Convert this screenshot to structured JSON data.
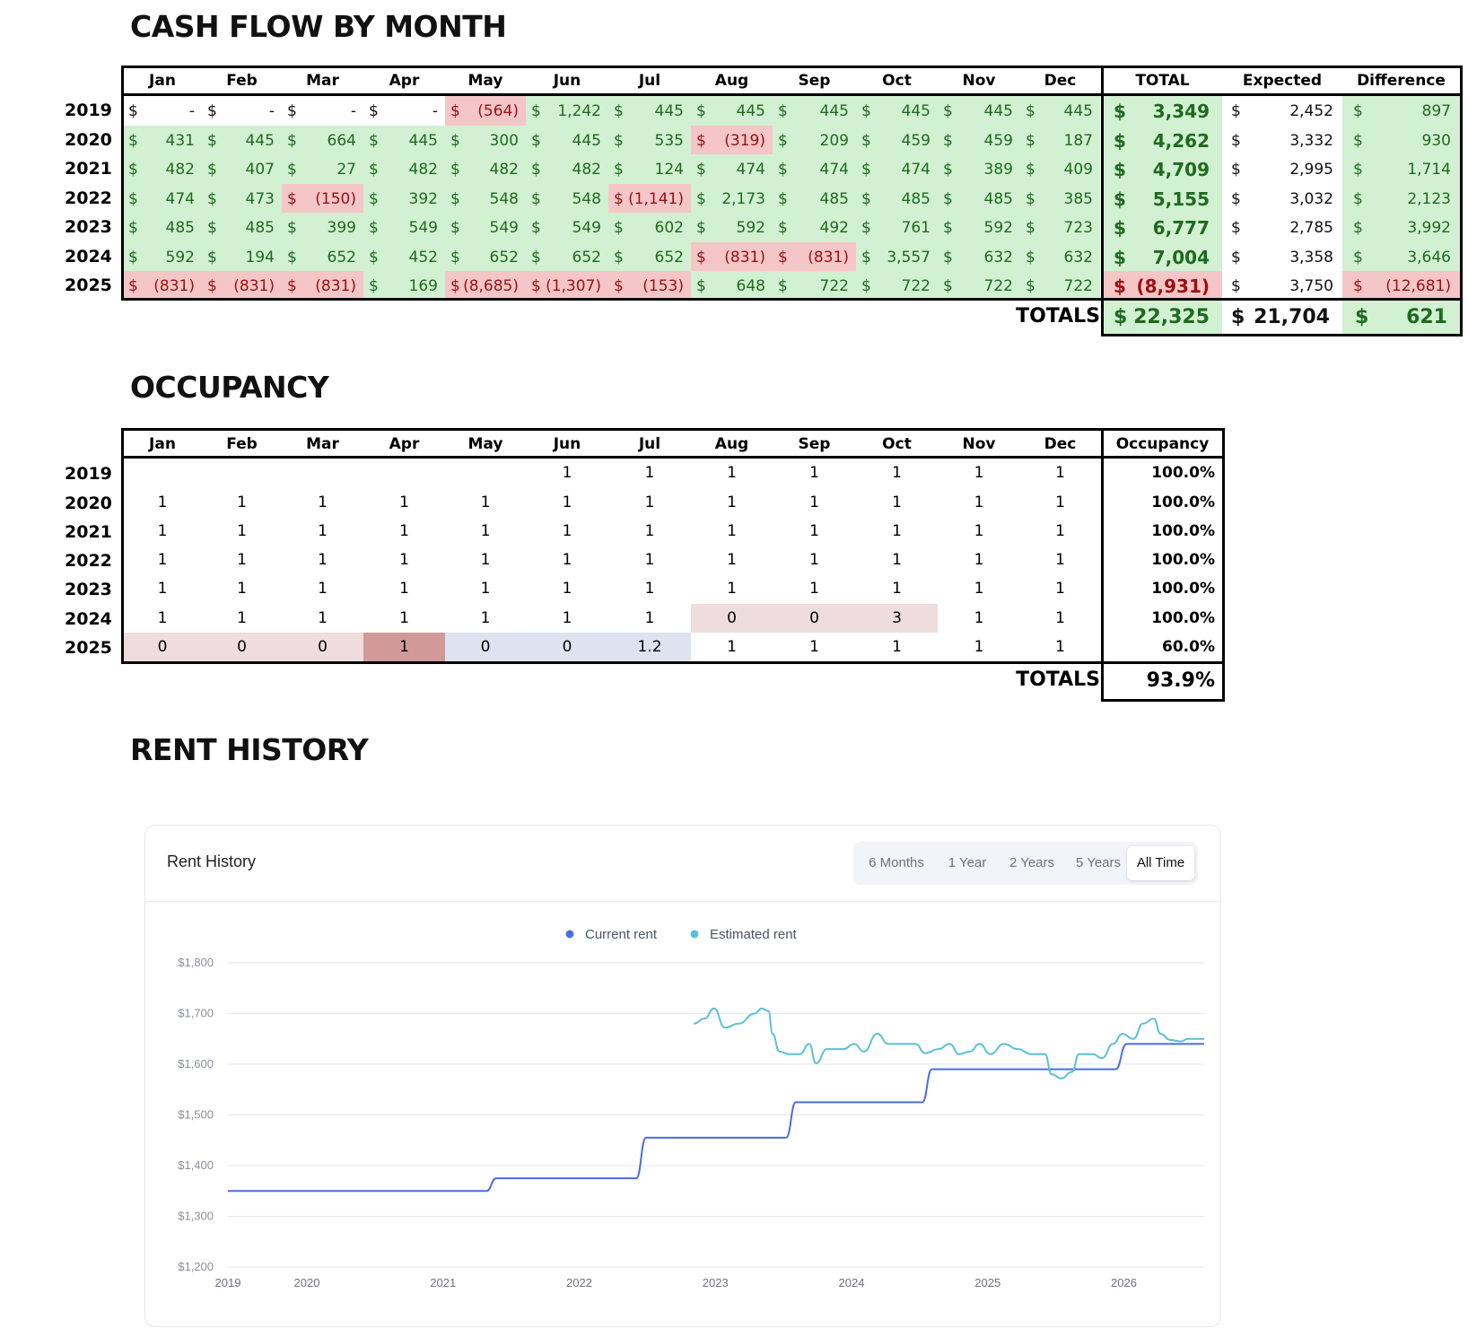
{
  "cashflow": {
    "title": "CASH FLOW BY MONTH",
    "months": [
      "Jan",
      "Feb",
      "Mar",
      "Apr",
      "May",
      "Jun",
      "Jul",
      "Aug",
      "Sep",
      "Oct",
      "Nov",
      "Dec"
    ],
    "headers": {
      "total": "TOTAL",
      "expected": "Expected",
      "difference": "Difference"
    },
    "currency": "$",
    "rows": [
      {
        "year": "2019",
        "cells": [
          [
            "-",
            "n"
          ],
          [
            "-",
            "n"
          ],
          [
            "-",
            "n"
          ],
          [
            "-",
            "n"
          ],
          [
            "(564)",
            "r"
          ],
          [
            "1,242",
            "g"
          ],
          [
            "445",
            "g"
          ],
          [
            "445",
            "g"
          ],
          [
            "445",
            "g"
          ],
          [
            "445",
            "g"
          ],
          [
            "445",
            "g"
          ],
          [
            "445",
            "g"
          ]
        ],
        "total": "3,349",
        "total_status": "g",
        "expected": "2,452",
        "difference": "897",
        "difference_status": "g"
      },
      {
        "year": "2020",
        "cells": [
          [
            "431",
            "g"
          ],
          [
            "445",
            "g"
          ],
          [
            "664",
            "g"
          ],
          [
            "445",
            "g"
          ],
          [
            "300",
            "g"
          ],
          [
            "445",
            "g"
          ],
          [
            "535",
            "g"
          ],
          [
            "(319)",
            "r"
          ],
          [
            "209",
            "g"
          ],
          [
            "459",
            "g"
          ],
          [
            "459",
            "g"
          ],
          [
            "187",
            "g"
          ]
        ],
        "total": "4,262",
        "total_status": "g",
        "expected": "3,332",
        "difference": "930",
        "difference_status": "g"
      },
      {
        "year": "2021",
        "cells": [
          [
            "482",
            "g"
          ],
          [
            "407",
            "g"
          ],
          [
            "27",
            "g"
          ],
          [
            "482",
            "g"
          ],
          [
            "482",
            "g"
          ],
          [
            "482",
            "g"
          ],
          [
            "124",
            "g"
          ],
          [
            "474",
            "g"
          ],
          [
            "474",
            "g"
          ],
          [
            "474",
            "g"
          ],
          [
            "389",
            "g"
          ],
          [
            "409",
            "g"
          ]
        ],
        "total": "4,709",
        "total_status": "g",
        "expected": "2,995",
        "difference": "1,714",
        "difference_status": "g"
      },
      {
        "year": "2022",
        "cells": [
          [
            "474",
            "g"
          ],
          [
            "473",
            "g"
          ],
          [
            "(150)",
            "r"
          ],
          [
            "392",
            "g"
          ],
          [
            "548",
            "g"
          ],
          [
            "548",
            "g"
          ],
          [
            "(1,141)",
            "r"
          ],
          [
            "2,173",
            "g"
          ],
          [
            "485",
            "g"
          ],
          [
            "485",
            "g"
          ],
          [
            "485",
            "g"
          ],
          [
            "385",
            "g"
          ]
        ],
        "total": "5,155",
        "total_status": "g",
        "expected": "3,032",
        "difference": "2,123",
        "difference_status": "g"
      },
      {
        "year": "2023",
        "cells": [
          [
            "485",
            "g"
          ],
          [
            "485",
            "g"
          ],
          [
            "399",
            "g"
          ],
          [
            "549",
            "g"
          ],
          [
            "549",
            "g"
          ],
          [
            "549",
            "g"
          ],
          [
            "602",
            "g"
          ],
          [
            "592",
            "g"
          ],
          [
            "492",
            "g"
          ],
          [
            "761",
            "g"
          ],
          [
            "592",
            "g"
          ],
          [
            "723",
            "g"
          ]
        ],
        "total": "6,777",
        "total_status": "g",
        "expected": "2,785",
        "difference": "3,992",
        "difference_status": "g"
      },
      {
        "year": "2024",
        "cells": [
          [
            "592",
            "g"
          ],
          [
            "194",
            "g"
          ],
          [
            "652",
            "g"
          ],
          [
            "452",
            "g"
          ],
          [
            "652",
            "g"
          ],
          [
            "652",
            "g"
          ],
          [
            "652",
            "g"
          ],
          [
            "(831)",
            "r"
          ],
          [
            "(831)",
            "r"
          ],
          [
            "3,557",
            "g"
          ],
          [
            "632",
            "g"
          ],
          [
            "632",
            "g"
          ]
        ],
        "total": "7,004",
        "total_status": "g",
        "expected": "3,358",
        "difference": "3,646",
        "difference_status": "g"
      },
      {
        "year": "2025",
        "cells": [
          [
            "(831)",
            "r"
          ],
          [
            "(831)",
            "r"
          ],
          [
            "(831)",
            "r"
          ],
          [
            "169",
            "g"
          ],
          [
            "(8,685)",
            "r"
          ],
          [
            "(1,307)",
            "r"
          ],
          [
            "(153)",
            "r"
          ],
          [
            "648",
            "g"
          ],
          [
            "722",
            "g"
          ],
          [
            "722",
            "g"
          ],
          [
            "722",
            "g"
          ],
          [
            "722",
            "g"
          ]
        ],
        "total": "(8,931)",
        "total_status": "r",
        "expected": "3,750",
        "difference": "(12,681)",
        "difference_status": "r"
      }
    ],
    "totals_label": "TOTALS",
    "totals": {
      "total": "22,325",
      "expected": "21,704",
      "difference": "621"
    }
  },
  "occupancy": {
    "title": "OCCUPANCY",
    "months": [
      "Jan",
      "Feb",
      "Mar",
      "Apr",
      "May",
      "Jun",
      "Jul",
      "Aug",
      "Sep",
      "Oct",
      "Nov",
      "Dec"
    ],
    "header": "Occupancy",
    "rows": [
      {
        "year": "2019",
        "cells": [
          [
            "",
            ""
          ],
          [
            "",
            ""
          ],
          [
            "",
            ""
          ],
          [
            "",
            ""
          ],
          [
            "",
            ""
          ],
          [
            "1",
            ""
          ],
          [
            "1",
            ""
          ],
          [
            "1",
            ""
          ],
          [
            "1",
            ""
          ],
          [
            "1",
            ""
          ],
          [
            "1",
            ""
          ],
          [
            "1",
            ""
          ]
        ],
        "pct": "100.0%"
      },
      {
        "year": "2020",
        "cells": [
          [
            "1",
            ""
          ],
          [
            "1",
            ""
          ],
          [
            "1",
            ""
          ],
          [
            "1",
            ""
          ],
          [
            "1",
            ""
          ],
          [
            "1",
            ""
          ],
          [
            "1",
            ""
          ],
          [
            "1",
            ""
          ],
          [
            "1",
            ""
          ],
          [
            "1",
            ""
          ],
          [
            "1",
            ""
          ],
          [
            "1",
            ""
          ]
        ],
        "pct": "100.0%"
      },
      {
        "year": "2021",
        "cells": [
          [
            "1",
            ""
          ],
          [
            "1",
            ""
          ],
          [
            "1",
            ""
          ],
          [
            "1",
            ""
          ],
          [
            "1",
            ""
          ],
          [
            "1",
            ""
          ],
          [
            "1",
            ""
          ],
          [
            "1",
            ""
          ],
          [
            "1",
            ""
          ],
          [
            "1",
            ""
          ],
          [
            "1",
            ""
          ],
          [
            "1",
            ""
          ]
        ],
        "pct": "100.0%"
      },
      {
        "year": "2022",
        "cells": [
          [
            "1",
            ""
          ],
          [
            "1",
            ""
          ],
          [
            "1",
            ""
          ],
          [
            "1",
            ""
          ],
          [
            "1",
            ""
          ],
          [
            "1",
            ""
          ],
          [
            "1",
            ""
          ],
          [
            "1",
            ""
          ],
          [
            "1",
            ""
          ],
          [
            "1",
            ""
          ],
          [
            "1",
            ""
          ],
          [
            "1",
            ""
          ]
        ],
        "pct": "100.0%"
      },
      {
        "year": "2023",
        "cells": [
          [
            "1",
            ""
          ],
          [
            "1",
            ""
          ],
          [
            "1",
            ""
          ],
          [
            "1",
            ""
          ],
          [
            "1",
            ""
          ],
          [
            "1",
            ""
          ],
          [
            "1",
            ""
          ],
          [
            "1",
            ""
          ],
          [
            "1",
            ""
          ],
          [
            "1",
            ""
          ],
          [
            "1",
            ""
          ],
          [
            "1",
            ""
          ]
        ],
        "pct": "100.0%"
      },
      {
        "year": "2024",
        "cells": [
          [
            "1",
            ""
          ],
          [
            "1",
            ""
          ],
          [
            "1",
            ""
          ],
          [
            "1",
            ""
          ],
          [
            "1",
            ""
          ],
          [
            "1",
            ""
          ],
          [
            "1",
            ""
          ],
          [
            "0",
            "pink"
          ],
          [
            "0",
            "pink"
          ],
          [
            "3",
            "pink"
          ],
          [
            "1",
            ""
          ],
          [
            "1",
            ""
          ]
        ],
        "pct": "100.0%"
      },
      {
        "year": "2025",
        "cells": [
          [
            "0",
            "pink"
          ],
          [
            "0",
            "pink"
          ],
          [
            "0",
            "pink"
          ],
          [
            "1",
            "dark"
          ],
          [
            "0",
            "blue"
          ],
          [
            "0",
            "blue"
          ],
          [
            "1.2",
            "blue"
          ],
          [
            "1",
            ""
          ],
          [
            "1",
            ""
          ],
          [
            "1",
            ""
          ],
          [
            "1",
            ""
          ],
          [
            "1",
            ""
          ]
        ],
        "pct": "60.0%"
      }
    ],
    "totals_label": "TOTALS",
    "total_pct": "93.9%"
  },
  "rent_history": {
    "section_title": "RENT HISTORY",
    "card_title": "Rent History",
    "ranges": [
      "6 Months",
      "1 Year",
      "2 Years",
      "5 Years",
      "All Time"
    ],
    "active_range": "All Time",
    "legend": {
      "current": "Current rent",
      "estimated": "Estimated rent"
    },
    "colors": {
      "current": "#4a6ee0",
      "estimated": "#5bc0d6"
    }
  },
  "chart_data": {
    "type": "line",
    "title": "Rent History",
    "xlabel": "",
    "ylabel": "",
    "x_ticks": [
      "2019",
      "2020",
      "2021",
      "2022",
      "2023",
      "2024",
      "2025",
      "2026"
    ],
    "y_ticks": [
      "$1,200",
      "$1,300",
      "$1,400",
      "$1,500",
      "$1,600",
      "$1,700",
      "$1,800"
    ],
    "ylim": [
      1200,
      1800
    ],
    "xlim": [
      2019.0,
      2026.17
    ],
    "grid": true,
    "legend_position": "top-center",
    "series": [
      {
        "name": "Current rent",
        "color": "#4a6ee0",
        "points": [
          [
            2019.0,
            1350
          ],
          [
            2020.9,
            1350
          ],
          [
            2020.97,
            1375
          ],
          [
            2022.0,
            1375
          ],
          [
            2022.07,
            1455
          ],
          [
            2023.1,
            1455
          ],
          [
            2023.17,
            1525
          ],
          [
            2024.1,
            1525
          ],
          [
            2024.17,
            1590
          ],
          [
            2025.52,
            1590
          ],
          [
            2025.6,
            1640
          ],
          [
            2026.17,
            1640
          ]
        ]
      },
      {
        "name": "Estimated rent",
        "color": "#5bc0d6",
        "points": [
          [
            2022.42,
            1680
          ],
          [
            2022.5,
            1690
          ],
          [
            2022.57,
            1710
          ],
          [
            2022.65,
            1672
          ],
          [
            2022.75,
            1680
          ],
          [
            2022.87,
            1700
          ],
          [
            2022.92,
            1710
          ],
          [
            2022.97,
            1705
          ],
          [
            2023.0,
            1660
          ],
          [
            2023.05,
            1625
          ],
          [
            2023.12,
            1620
          ],
          [
            2023.2,
            1620
          ],
          [
            2023.27,
            1640
          ],
          [
            2023.32,
            1602
          ],
          [
            2023.4,
            1630
          ],
          [
            2023.52,
            1630
          ],
          [
            2023.6,
            1640
          ],
          [
            2023.67,
            1625
          ],
          [
            2023.77,
            1660
          ],
          [
            2023.85,
            1640
          ],
          [
            2024.05,
            1640
          ],
          [
            2024.12,
            1622
          ],
          [
            2024.22,
            1630
          ],
          [
            2024.3,
            1640
          ],
          [
            2024.37,
            1620
          ],
          [
            2024.45,
            1625
          ],
          [
            2024.52,
            1640
          ],
          [
            2024.6,
            1620
          ],
          [
            2024.7,
            1640
          ],
          [
            2024.8,
            1630
          ],
          [
            2024.9,
            1620
          ],
          [
            2025.0,
            1620
          ],
          [
            2025.05,
            1580
          ],
          [
            2025.12,
            1572
          ],
          [
            2025.2,
            1585
          ],
          [
            2025.25,
            1620
          ],
          [
            2025.35,
            1620
          ],
          [
            2025.42,
            1612
          ],
          [
            2025.5,
            1640
          ],
          [
            2025.57,
            1660
          ],
          [
            2025.65,
            1650
          ],
          [
            2025.72,
            1680
          ],
          [
            2025.8,
            1690
          ],
          [
            2025.85,
            1660
          ],
          [
            2025.92,
            1648
          ],
          [
            2026.0,
            1645
          ],
          [
            2026.05,
            1650
          ],
          [
            2026.17,
            1650
          ]
        ]
      }
    ]
  }
}
